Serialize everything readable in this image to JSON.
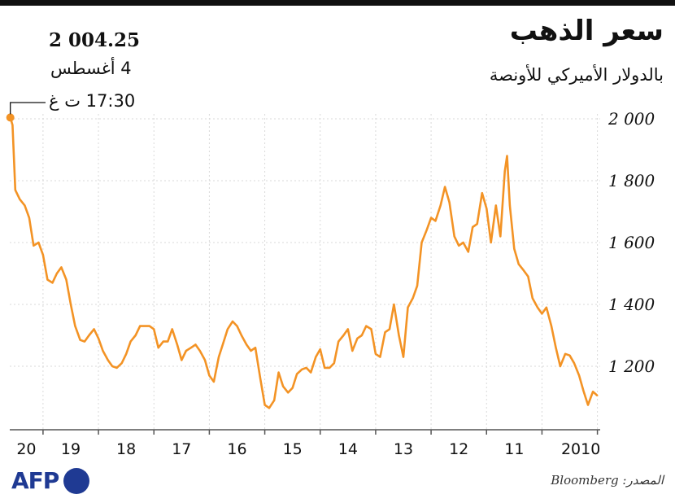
{
  "header": {
    "title": "سعر الذهب",
    "subtitle": "بالدولار الأميركي للأونصة"
  },
  "annotation": {
    "value": "2 004.25",
    "date": "4 أغسطس",
    "time": "17:30 ت غ"
  },
  "footer": {
    "source": "المصدر: Bloomberg",
    "logo_text": "AFP"
  },
  "colors": {
    "line": "#f39325",
    "axis": "#555555",
    "grid": "#d9d9d9",
    "logo": "#1f3a93"
  },
  "chart_data": {
    "type": "line",
    "title": "سعر الذهب",
    "subtitle": "بالدولار الأميركي للأونصة",
    "ylabel": "",
    "xlabel": "",
    "ylim": [
      1000,
      2000
    ],
    "yticks": [
      1200,
      1400,
      1600,
      1800,
      2000
    ],
    "ytick_labels": [
      "1 200",
      "1 400",
      "1 600",
      "1 800",
      "2 000"
    ],
    "xtick_labels": [
      "20",
      "19",
      "18",
      "17",
      "16",
      "15",
      "14",
      "13",
      "12",
      "11",
      "2010"
    ],
    "grid": true,
    "x_direction": "right-to-left",
    "series": [
      {
        "points": [
          [
            2010.0,
            1105
          ],
          [
            2010.08,
            1118
          ],
          [
            2010.17,
            1075
          ],
          [
            2010.25,
            1120
          ],
          [
            2010.33,
            1170
          ],
          [
            2010.42,
            1210
          ],
          [
            2010.5,
            1235
          ],
          [
            2010.58,
            1240
          ],
          [
            2010.67,
            1200
          ],
          [
            2010.75,
            1260
          ],
          [
            2010.83,
            1330
          ],
          [
            2010.92,
            1390
          ],
          [
            2011.0,
            1370
          ],
          [
            2011.08,
            1390
          ],
          [
            2011.17,
            1420
          ],
          [
            2011.25,
            1490
          ],
          [
            2011.33,
            1510
          ],
          [
            2011.42,
            1530
          ],
          [
            2011.5,
            1580
          ],
          [
            2011.58,
            1720
          ],
          [
            2011.63,
            1880
          ],
          [
            2011.67,
            1830
          ],
          [
            2011.75,
            1620
          ],
          [
            2011.83,
            1720
          ],
          [
            2011.92,
            1600
          ],
          [
            2012.0,
            1710
          ],
          [
            2012.08,
            1760
          ],
          [
            2012.17,
            1660
          ],
          [
            2012.25,
            1650
          ],
          [
            2012.33,
            1570
          ],
          [
            2012.42,
            1600
          ],
          [
            2012.5,
            1590
          ],
          [
            2012.58,
            1620
          ],
          [
            2012.67,
            1730
          ],
          [
            2012.75,
            1780
          ],
          [
            2012.83,
            1720
          ],
          [
            2012.92,
            1670
          ],
          [
            2013.0,
            1680
          ],
          [
            2013.08,
            1640
          ],
          [
            2013.17,
            1600
          ],
          [
            2013.25,
            1460
          ],
          [
            2013.33,
            1420
          ],
          [
            2013.42,
            1390
          ],
          [
            2013.5,
            1230
          ],
          [
            2013.58,
            1300
          ],
          [
            2013.67,
            1400
          ],
          [
            2013.75,
            1320
          ],
          [
            2013.83,
            1310
          ],
          [
            2013.92,
            1230
          ],
          [
            2014.0,
            1240
          ],
          [
            2014.08,
            1320
          ],
          [
            2014.17,
            1330
          ],
          [
            2014.25,
            1300
          ],
          [
            2014.33,
            1290
          ],
          [
            2014.42,
            1250
          ],
          [
            2014.5,
            1320
          ],
          [
            2014.58,
            1300
          ],
          [
            2014.67,
            1280
          ],
          [
            2014.75,
            1210
          ],
          [
            2014.83,
            1195
          ],
          [
            2014.92,
            1195
          ],
          [
            2015.0,
            1255
          ],
          [
            2015.08,
            1230
          ],
          [
            2015.17,
            1180
          ],
          [
            2015.25,
            1195
          ],
          [
            2015.33,
            1190
          ],
          [
            2015.42,
            1175
          ],
          [
            2015.5,
            1130
          ],
          [
            2015.58,
            1115
          ],
          [
            2015.67,
            1135
          ],
          [
            2015.75,
            1180
          ],
          [
            2015.83,
            1090
          ],
          [
            2015.92,
            1065
          ],
          [
            2016.0,
            1075
          ],
          [
            2016.08,
            1160
          ],
          [
            2016.17,
            1260
          ],
          [
            2016.25,
            1250
          ],
          [
            2016.33,
            1270
          ],
          [
            2016.42,
            1300
          ],
          [
            2016.5,
            1330
          ],
          [
            2016.58,
            1345
          ],
          [
            2016.67,
            1320
          ],
          [
            2016.75,
            1275
          ],
          [
            2016.83,
            1230
          ],
          [
            2016.92,
            1150
          ],
          [
            2017.0,
            1170
          ],
          [
            2017.08,
            1220
          ],
          [
            2017.17,
            1250
          ],
          [
            2017.25,
            1270
          ],
          [
            2017.33,
            1260
          ],
          [
            2017.42,
            1250
          ],
          [
            2017.5,
            1220
          ],
          [
            2017.58,
            1270
          ],
          [
            2017.67,
            1320
          ],
          [
            2017.75,
            1280
          ],
          [
            2017.83,
            1280
          ],
          [
            2017.92,
            1260
          ],
          [
            2018.0,
            1320
          ],
          [
            2018.08,
            1330
          ],
          [
            2018.17,
            1330
          ],
          [
            2018.25,
            1330
          ],
          [
            2018.33,
            1300
          ],
          [
            2018.42,
            1280
          ],
          [
            2018.5,
            1240
          ],
          [
            2018.58,
            1210
          ],
          [
            2018.67,
            1195
          ],
          [
            2018.75,
            1200
          ],
          [
            2018.83,
            1220
          ],
          [
            2018.92,
            1250
          ],
          [
            2019.0,
            1290
          ],
          [
            2019.08,
            1320
          ],
          [
            2019.17,
            1300
          ],
          [
            2019.25,
            1280
          ],
          [
            2019.33,
            1285
          ],
          [
            2019.42,
            1330
          ],
          [
            2019.5,
            1400
          ],
          [
            2019.58,
            1480
          ],
          [
            2019.67,
            1520
          ],
          [
            2019.75,
            1500
          ],
          [
            2019.83,
            1470
          ],
          [
            2019.92,
            1480
          ],
          [
            2020.0,
            1560
          ],
          [
            2020.08,
            1600
          ],
          [
            2020.17,
            1590
          ],
          [
            2020.25,
            1680
          ],
          [
            2020.33,
            1720
          ],
          [
            2020.42,
            1740
          ],
          [
            2020.5,
            1770
          ],
          [
            2020.55,
            1980
          ],
          [
            2020.59,
            2004.25
          ]
        ]
      }
    ]
  }
}
